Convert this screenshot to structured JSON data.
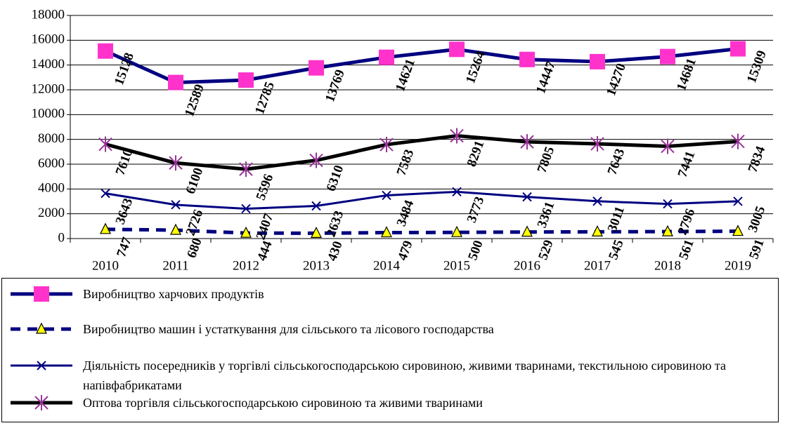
{
  "chart_data": {
    "type": "line",
    "categories": [
      "2010",
      "2011",
      "2012",
      "2013",
      "2014",
      "2015",
      "2016",
      "2017",
      "2018",
      "2019"
    ],
    "ylim": [
      0,
      18000
    ],
    "yticks": [
      0,
      2000,
      4000,
      6000,
      8000,
      10000,
      12000,
      14000,
      16000,
      18000
    ],
    "grid": true,
    "series": [
      {
        "name": "Виробництво харчових продуктів",
        "color": "#000080",
        "marker": "square",
        "marker_color": "#ff33cc",
        "dashed": false,
        "values": [
          15128,
          12589,
          12785,
          13769,
          14621,
          15264,
          14447,
          14270,
          14681,
          15309
        ]
      },
      {
        "name": "Виробництво машин і устаткування для сільського та лісового господарства",
        "color": "#000080",
        "marker": "triangle",
        "marker_color": "#ffff00",
        "dashed": true,
        "values": [
          747,
          680,
          444,
          430,
          479,
          500,
          529,
          545,
          561,
          591
        ]
      },
      {
        "name": "Діяльність посередників у торгівлі сільськогосподарською сировиною, живими тваринами, текстильною сировиною та напівфабрикатами",
        "color": "#000080",
        "marker": "x",
        "marker_color": "#000080",
        "dashed": false,
        "values": [
          3643,
          2726,
          2407,
          2633,
          3484,
          3773,
          3361,
          3011,
          2796,
          3005
        ]
      },
      {
        "name": "Оптова торгівля сільськогосподарською сировиною та живими тваринами",
        "color": "#000000",
        "marker": "asterisk",
        "marker_color": "#993399",
        "dashed": false,
        "values": [
          7610,
          6100,
          5596,
          6310,
          7583,
          8291,
          7805,
          7643,
          7441,
          7834
        ]
      }
    ]
  }
}
